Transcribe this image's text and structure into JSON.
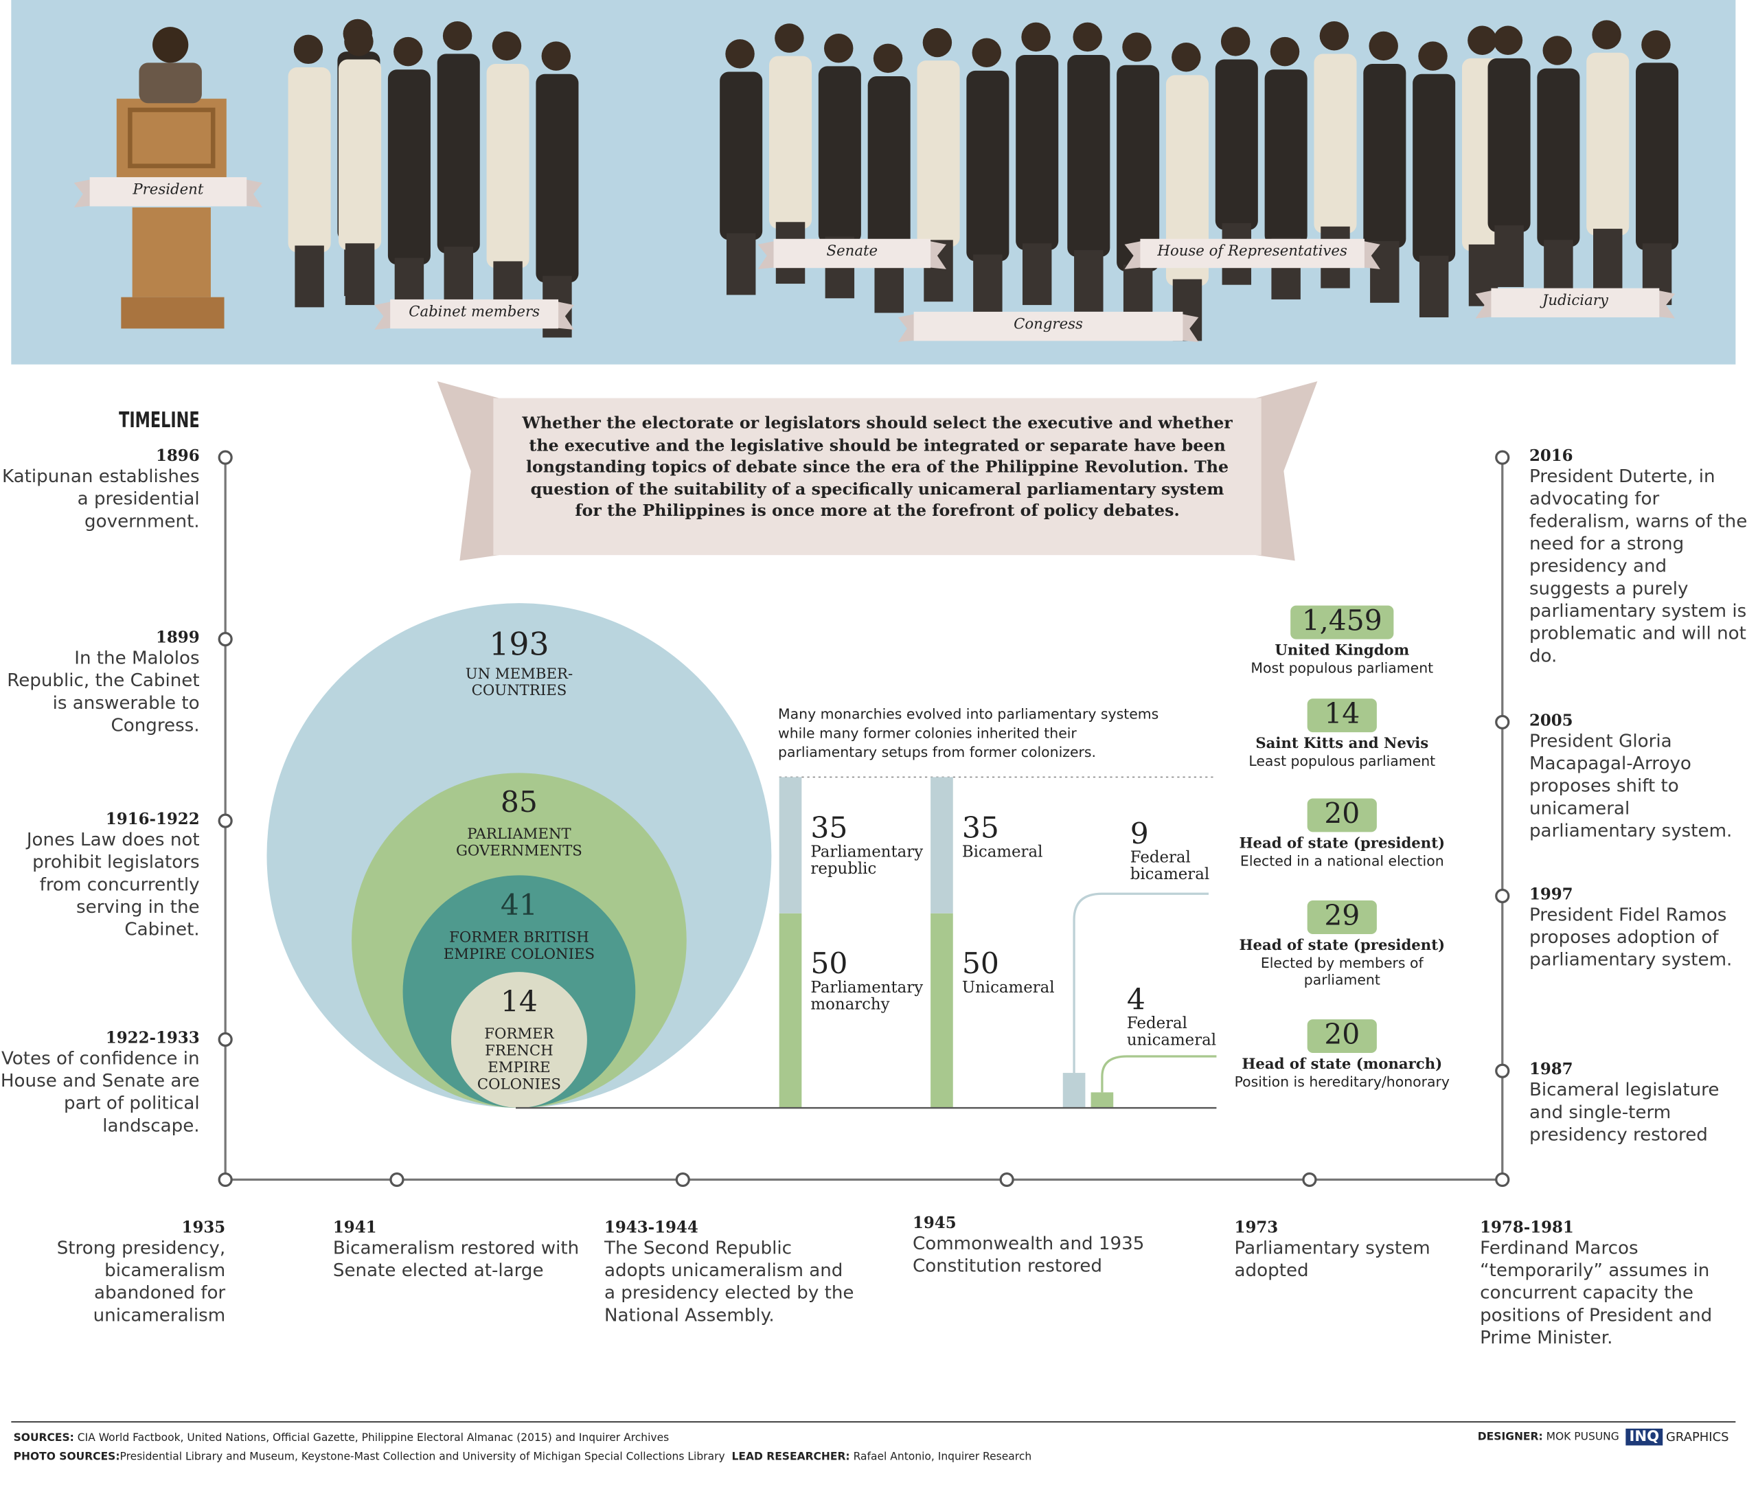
{
  "banner": {
    "labels": [
      "President",
      "Cabinet members",
      "Senate",
      "House of Representatives",
      "Congress",
      "Judiciary"
    ]
  },
  "intro": "Whether the electorate or legislators should select the executive and whether the executive and the legislative should be integrated or separate have been longstanding topics of debate since the era of the Philippine Revolution. The question of the suitability of a specifically unicameral parliamentary system for the Philippines is once more at the forefront of policy debates.",
  "timeline": {
    "title": "TIMELINE",
    "events": [
      {
        "year": "1896",
        "text": "Katipunan establishes a presidential government."
      },
      {
        "year": "1899",
        "text": "In the Malolos Republic, the Cabinet is answerable to Congress."
      },
      {
        "year": "1916-1922",
        "text": "Jones Law does not prohibit legislators from concurrently serving in the Cabinet."
      },
      {
        "year": "1922-1933",
        "text": "Votes of confidence in House and Senate are part of political landscape."
      },
      {
        "year": "1935",
        "text": "Strong presidency, bicameralism abandoned for unicameralism"
      },
      {
        "year": "1941",
        "text": "Bicameralism restored with Senate elected at-large"
      },
      {
        "year": "1943-1944",
        "text": "The Second Republic adopts unicameralism and a presidency elected by the National Assembly."
      },
      {
        "year": "1945",
        "text": "Commonwealth and 1935 Constitution restored"
      },
      {
        "year": "1973",
        "text": "Parliamentary system adopted"
      },
      {
        "year": "1978-1981",
        "text": "Ferdinand Marcos “temporarily” assumes in concurrent capacity the positions of President and Prime Minister."
      },
      {
        "year": "1987",
        "text": "Bicameral legislature and single-term presidency restored"
      },
      {
        "year": "1997",
        "text": "President Fidel Ramos proposes adoption of parliamentary system."
      },
      {
        "year": "2005",
        "text": "President Gloria Macapagal-Arroyo proposes shift to unicameral parliamentary system."
      },
      {
        "year": "2016",
        "text": "President Duterte, in advocating for federalism, warns of the need for a strong presidency and suggests a purely parliamentary system is problematic and will not do."
      }
    ]
  },
  "circles": [
    {
      "value": 193,
      "label": "UN MEMBER-COUNTRIES"
    },
    {
      "value": 85,
      "label": "PARLIAMENT GOVERNMENTS"
    },
    {
      "value": 41,
      "label": "FORMER BRITISH EMPIRE COLONIES"
    },
    {
      "value": 14,
      "label": "FORMER FRENCH EMPIRE COLONIES"
    }
  ],
  "note": "Many monarchies evolved into parliamentary systems while many former colonies inherited their parliamentary setups from former colonizers.",
  "stacked_bars": [
    {
      "segments": [
        {
          "value": 50,
          "label": "Parliamentary monarchy"
        },
        {
          "value": 35,
          "label": "Parliamentary republic"
        }
      ]
    },
    {
      "segments": [
        {
          "value": 50,
          "label": "Unicameral"
        },
        {
          "value": 35,
          "label": "Bicameral"
        }
      ]
    }
  ],
  "federal_bars": [
    {
      "value": 9,
      "label": "Federal bicameral"
    },
    {
      "value": 4,
      "label": "Federal unicameral"
    }
  ],
  "facts": [
    {
      "value": "1,459",
      "title": "United Kingdom",
      "text": "Most populous parliament"
    },
    {
      "value": "14",
      "title": "Saint Kitts and Nevis",
      "text": "Least populous parliament"
    },
    {
      "value": "20",
      "title": "Head of state (president)",
      "text": "Elected in a national election"
    },
    {
      "value": "29",
      "title": "Head of state (president)",
      "text": "Elected by members of parliament"
    },
    {
      "value": "20",
      "title": "Head of state (monarch)",
      "text": "Position is hereditary/honorary"
    }
  ],
  "footer": {
    "sources_label": "SOURCES:",
    "sources": "CIA World Factbook, United Nations, Official Gazette, Philippine Electoral Almanac (2015) and Inquirer Archives",
    "photo_label": "PHOTO SOURCES:",
    "photo": "Presidential Library and Museum, Keystone-Mast Collection and University of Michigan Special Collections Library",
    "researcher_label": "LEAD RESEARCHER:",
    "researcher": "Rafael Antonio, Inquirer Research",
    "designer_label": "DESIGNER:",
    "designer": "MOK PUSUNG",
    "brand": "INQ",
    "brand_suffix": "GRAPHICS"
  }
}
